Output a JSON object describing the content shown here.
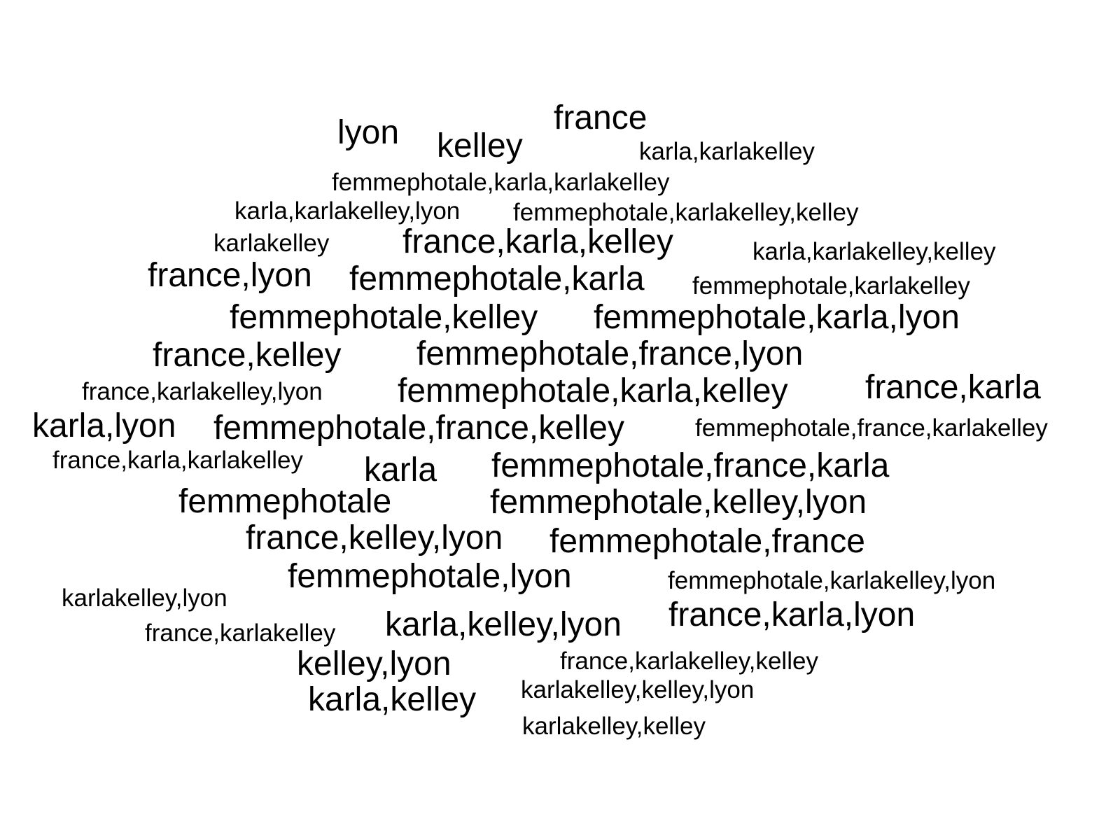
{
  "text_color": "#000000",
  "background": "#ffffff",
  "words": [
    {
      "text": "lyon",
      "weight": 3
    },
    {
      "text": "kelley",
      "weight": 3
    },
    {
      "text": "france",
      "weight": 3
    },
    {
      "text": "karla,karlakelley",
      "weight": 1
    },
    {
      "text": "femmephotale,karla,karlakelley",
      "weight": 1
    },
    {
      "text": "karla,karlakelley,lyon",
      "weight": 1
    },
    {
      "text": "femmephotale,karlakelley,kelley",
      "weight": 1
    },
    {
      "text": "karlakelley",
      "weight": 1
    },
    {
      "text": "france,karla,kelley",
      "weight": 3
    },
    {
      "text": "karla,karlakelley,kelley",
      "weight": 1
    },
    {
      "text": "france,lyon",
      "weight": 3
    },
    {
      "text": "femmephotale,karla",
      "weight": 3
    },
    {
      "text": "femmephotale,karlakelley",
      "weight": 1
    },
    {
      "text": "femmephotale,kelley",
      "weight": 3
    },
    {
      "text": "femmephotale,karla,lyon",
      "weight": 3
    },
    {
      "text": "france,kelley",
      "weight": 3
    },
    {
      "text": "femmephotale,france,lyon",
      "weight": 3
    },
    {
      "text": "france,karlakelley,lyon",
      "weight": 1
    },
    {
      "text": "femmephotale,karla,kelley",
      "weight": 3
    },
    {
      "text": "france,karla",
      "weight": 3
    },
    {
      "text": "karla,lyon",
      "weight": 3
    },
    {
      "text": "femmephotale,france,kelley",
      "weight": 3
    },
    {
      "text": "femmephotale,france,karlakelley",
      "weight": 1
    },
    {
      "text": "france,karla,karlakelley",
      "weight": 1
    },
    {
      "text": "karla",
      "weight": 3
    },
    {
      "text": "femmephotale,france,karla",
      "weight": 3
    },
    {
      "text": "femmephotale",
      "weight": 3
    },
    {
      "text": "femmephotale,kelley,lyon",
      "weight": 3
    },
    {
      "text": "france,kelley,lyon",
      "weight": 3
    },
    {
      "text": "femmephotale,france",
      "weight": 3
    },
    {
      "text": "femmephotale,lyon",
      "weight": 3
    },
    {
      "text": "femmephotale,karlakelley,lyon",
      "weight": 1
    },
    {
      "text": "karlakelley,lyon",
      "weight": 1
    },
    {
      "text": "france,karla,lyon",
      "weight": 3
    },
    {
      "text": "france,karlakelley",
      "weight": 1
    },
    {
      "text": "karla,kelley,lyon",
      "weight": 3
    },
    {
      "text": "kelley,lyon",
      "weight": 3
    },
    {
      "text": "france,karlakelley,kelley",
      "weight": 1
    },
    {
      "text": "karlakelley,kelley,lyon",
      "weight": 1
    },
    {
      "text": "karla,kelley",
      "weight": 3
    },
    {
      "text": "karlakelley,kelley",
      "weight": 1
    }
  ]
}
